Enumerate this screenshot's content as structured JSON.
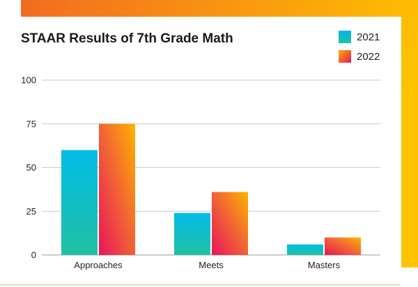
{
  "chart_data": {
    "type": "bar",
    "title": "STAAR Results of 7th Grade Math",
    "xlabel": "",
    "ylabel": "",
    "categories": [
      "Approaches",
      "Meets",
      "Masters"
    ],
    "series": [
      {
        "name": "2021",
        "values": [
          60,
          24,
          6
        ]
      },
      {
        "name": "2022",
        "values": [
          75,
          36,
          10
        ]
      }
    ],
    "ylim": [
      0,
      100
    ],
    "yticks": [
      0,
      25,
      50,
      75,
      100
    ],
    "grid": true,
    "legend_position": "top-right"
  },
  "colors": {
    "series_2021": [
      "#00b8e6",
      "#20c0a8"
    ],
    "series_2022": [
      "#ffb000",
      "#e8145a"
    ],
    "frame": [
      "#f26b21",
      "#ffc400"
    ],
    "grid": "#c9c9c9"
  }
}
